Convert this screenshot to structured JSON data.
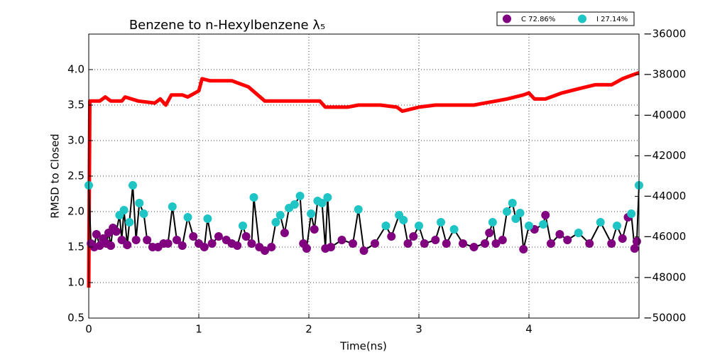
{
  "chart_data": {
    "type": "line",
    "title": "Benzene to n-Hexylbenzene λ₅",
    "xlabel": "Time(ns)",
    "ylabel": "RMSD to Closed",
    "xlim": [
      0,
      5
    ],
    "xticks": [
      0,
      1,
      2,
      3,
      4
    ],
    "ylim": [
      0.5,
      4.5
    ],
    "yticks": [
      0.5,
      {
        "value": 1.0,
        "label": "1.0"
      },
      1.5,
      {
        "value": 2.0,
        "label": "2.0"
      },
      2.5,
      {
        "value": 3.0,
        "label": "3.0"
      },
      3.5,
      {
        "value": 4.0,
        "label": "4.0"
      }
    ],
    "y2lim": [
      -50000,
      -36000
    ],
    "y2ticks": [
      {
        "value": -50000,
        "label": "−50000"
      },
      {
        "value": -48000,
        "label": "−48000"
      },
      {
        "value": -46000,
        "label": "−46000"
      },
      {
        "value": -44000,
        "label": "−44000"
      },
      {
        "value": -42000,
        "label": "−42000"
      },
      {
        "value": -40000,
        "label": "−40000"
      },
      {
        "value": -38000,
        "label": "−38000"
      },
      {
        "value": -36000,
        "label": "−36000"
      }
    ],
    "grid": true,
    "legend": "upper right",
    "series": [
      {
        "color": "#000000",
        "mode": "line",
        "x": [
          0.0,
          0.02,
          0.05,
          0.07,
          0.1,
          0.13,
          0.16,
          0.18,
          0.2,
          0.22,
          0.25,
          0.28,
          0.3,
          0.32,
          0.35,
          0.37,
          0.4,
          0.43,
          0.46,
          0.5,
          0.53,
          0.58,
          0.63,
          0.68,
          0.72,
          0.76,
          0.8,
          0.85,
          0.9,
          0.95,
          1.0,
          1.05,
          1.08,
          1.12,
          1.18,
          1.25,
          1.3,
          1.35,
          1.4,
          1.43,
          1.48,
          1.5,
          1.55,
          1.6,
          1.66,
          1.7,
          1.74,
          1.78,
          1.82,
          1.87,
          1.92,
          1.95,
          1.98,
          2.02,
          2.05,
          2.08,
          2.12,
          2.15,
          2.17,
          2.2,
          2.3,
          2.4,
          2.45,
          2.5,
          2.6,
          2.7,
          2.75,
          2.82,
          2.86,
          2.9,
          2.95,
          3.0,
          3.05,
          3.15,
          3.2,
          3.25,
          3.32,
          3.4,
          3.5,
          3.6,
          3.64,
          3.67,
          3.7,
          3.76,
          3.8,
          3.85,
          3.88,
          3.92,
          3.95,
          4.0,
          4.05,
          4.13,
          4.15,
          4.2,
          4.28,
          4.35,
          4.45,
          4.55,
          4.65,
          4.75,
          4.8,
          4.85,
          4.9,
          4.93,
          4.96,
          4.98,
          5.0
        ],
        "values": [
          2.37,
          1.55,
          1.5,
          1.68,
          1.52,
          1.62,
          1.55,
          1.7,
          1.52,
          1.77,
          1.72,
          1.95,
          1.6,
          2.02,
          1.53,
          1.85,
          2.37,
          1.6,
          2.12,
          1.97,
          1.6,
          1.5,
          1.5,
          1.55,
          1.55,
          2.07,
          1.6,
          1.52,
          1.92,
          1.65,
          1.55,
          1.5,
          1.9,
          1.55,
          1.65,
          1.6,
          1.55,
          1.52,
          1.8,
          1.65,
          1.55,
          2.2,
          1.5,
          1.45,
          1.5,
          1.85,
          1.95,
          1.7,
          2.05,
          2.1,
          2.22,
          1.55,
          1.48,
          1.97,
          1.75,
          2.15,
          2.12,
          1.48,
          2.2,
          1.5,
          1.6,
          1.55,
          2.03,
          1.45,
          1.55,
          1.8,
          1.65,
          1.95,
          1.88,
          1.55,
          1.65,
          1.8,
          1.55,
          1.6,
          1.85,
          1.55,
          1.75,
          1.55,
          1.5,
          1.55,
          1.7,
          1.85,
          1.55,
          1.6,
          2.0,
          2.12,
          1.9,
          1.98,
          1.47,
          1.8,
          1.75,
          1.82,
          1.95,
          1.55,
          1.68,
          1.6,
          1.7,
          1.55,
          1.85,
          1.55,
          1.8,
          1.62,
          1.92,
          1.97,
          1.48,
          1.58,
          2.37
        ]
      },
      {
        "name": "C 72.86%",
        "color": "#800080",
        "mode": "markers",
        "x": [
          0.02,
          0.05,
          0.07,
          0.1,
          0.13,
          0.16,
          0.18,
          0.2,
          0.22,
          0.25,
          0.3,
          0.35,
          0.43,
          0.53,
          0.58,
          0.63,
          0.68,
          0.72,
          0.8,
          0.85,
          0.95,
          1.0,
          1.05,
          1.12,
          1.18,
          1.25,
          1.3,
          1.35,
          1.43,
          1.48,
          1.55,
          1.6,
          1.66,
          1.78,
          1.95,
          1.98,
          2.05,
          2.15,
          2.2,
          2.3,
          2.4,
          2.5,
          2.6,
          2.75,
          2.9,
          2.95,
          3.05,
          3.15,
          3.25,
          3.4,
          3.5,
          3.6,
          3.64,
          3.7,
          3.76,
          3.95,
          4.05,
          4.15,
          4.2,
          4.28,
          4.35,
          4.55,
          4.75,
          4.85,
          4.9,
          4.96,
          4.98
        ],
        "values": [
          1.55,
          1.5,
          1.68,
          1.52,
          1.62,
          1.55,
          1.7,
          1.52,
          1.77,
          1.72,
          1.6,
          1.53,
          1.6,
          1.6,
          1.5,
          1.5,
          1.55,
          1.55,
          1.6,
          1.52,
          1.65,
          1.55,
          1.5,
          1.55,
          1.65,
          1.6,
          1.55,
          1.52,
          1.65,
          1.55,
          1.5,
          1.45,
          1.5,
          1.7,
          1.55,
          1.48,
          1.75,
          1.48,
          1.5,
          1.6,
          1.55,
          1.45,
          1.55,
          1.65,
          1.55,
          1.65,
          1.55,
          1.6,
          1.55,
          1.55,
          1.5,
          1.55,
          1.7,
          1.55,
          1.6,
          1.47,
          1.75,
          1.95,
          1.55,
          1.68,
          1.6,
          1.55,
          1.55,
          1.62,
          1.92,
          1.48,
          1.58
        ]
      },
      {
        "name": "I 27.14%",
        "color": "#1fc4c4",
        "mode": "markers",
        "x": [
          0.0,
          0.28,
          0.32,
          0.37,
          0.4,
          0.46,
          0.5,
          0.76,
          0.9,
          1.08,
          1.4,
          1.5,
          1.7,
          1.74,
          1.82,
          1.87,
          1.92,
          2.02,
          2.08,
          2.12,
          2.17,
          2.45,
          2.7,
          2.82,
          2.86,
          3.0,
          3.2,
          3.32,
          3.67,
          3.8,
          3.85,
          3.88,
          3.92,
          4.0,
          4.13,
          4.45,
          4.65,
          4.8,
          4.93,
          5.0
        ],
        "values": [
          2.37,
          1.95,
          2.02,
          1.85,
          2.37,
          2.12,
          1.97,
          2.07,
          1.92,
          1.9,
          1.8,
          2.2,
          1.85,
          1.95,
          2.05,
          2.1,
          2.22,
          1.97,
          2.15,
          2.12,
          2.2,
          2.03,
          1.8,
          1.95,
          1.88,
          1.8,
          1.85,
          1.75,
          1.85,
          2.0,
          2.12,
          1.9,
          1.98,
          1.8,
          1.82,
          1.7,
          1.85,
          1.8,
          1.97,
          2.37
        ]
      },
      {
        "color": "#ff0000",
        "mode": "line",
        "axis": "y2",
        "x": [
          0.0,
          0.01,
          0.1,
          0.15,
          0.2,
          0.3,
          0.33,
          0.45,
          0.6,
          0.65,
          0.7,
          0.75,
          0.85,
          0.9,
          1.0,
          1.03,
          1.1,
          1.3,
          1.35,
          1.45,
          1.6,
          1.9,
          2.1,
          2.15,
          2.35,
          2.45,
          2.65,
          2.8,
          2.85,
          3.0,
          3.15,
          3.3,
          3.5,
          3.6,
          3.7,
          3.8,
          3.95,
          4.0,
          4.05,
          4.15,
          4.3,
          4.45,
          4.6,
          4.75,
          4.85,
          4.95,
          5.0
        ],
        "values": [
          -48500,
          -39300,
          -39300,
          -39100,
          -39300,
          -39300,
          -39100,
          -39300,
          -39400,
          -39200,
          -39500,
          -39000,
          -39000,
          -39100,
          -38800,
          -38200,
          -38300,
          -38300,
          -38400,
          -38600,
          -39300,
          -39300,
          -39300,
          -39600,
          -39600,
          -39500,
          -39500,
          -39600,
          -39800,
          -39600,
          -39500,
          -39500,
          -39500,
          -39400,
          -39300,
          -39200,
          -39000,
          -38900,
          -39200,
          -39200,
          -38900,
          -38700,
          -38500,
          -38500,
          -38200,
          -38000,
          -37900
        ]
      }
    ]
  }
}
